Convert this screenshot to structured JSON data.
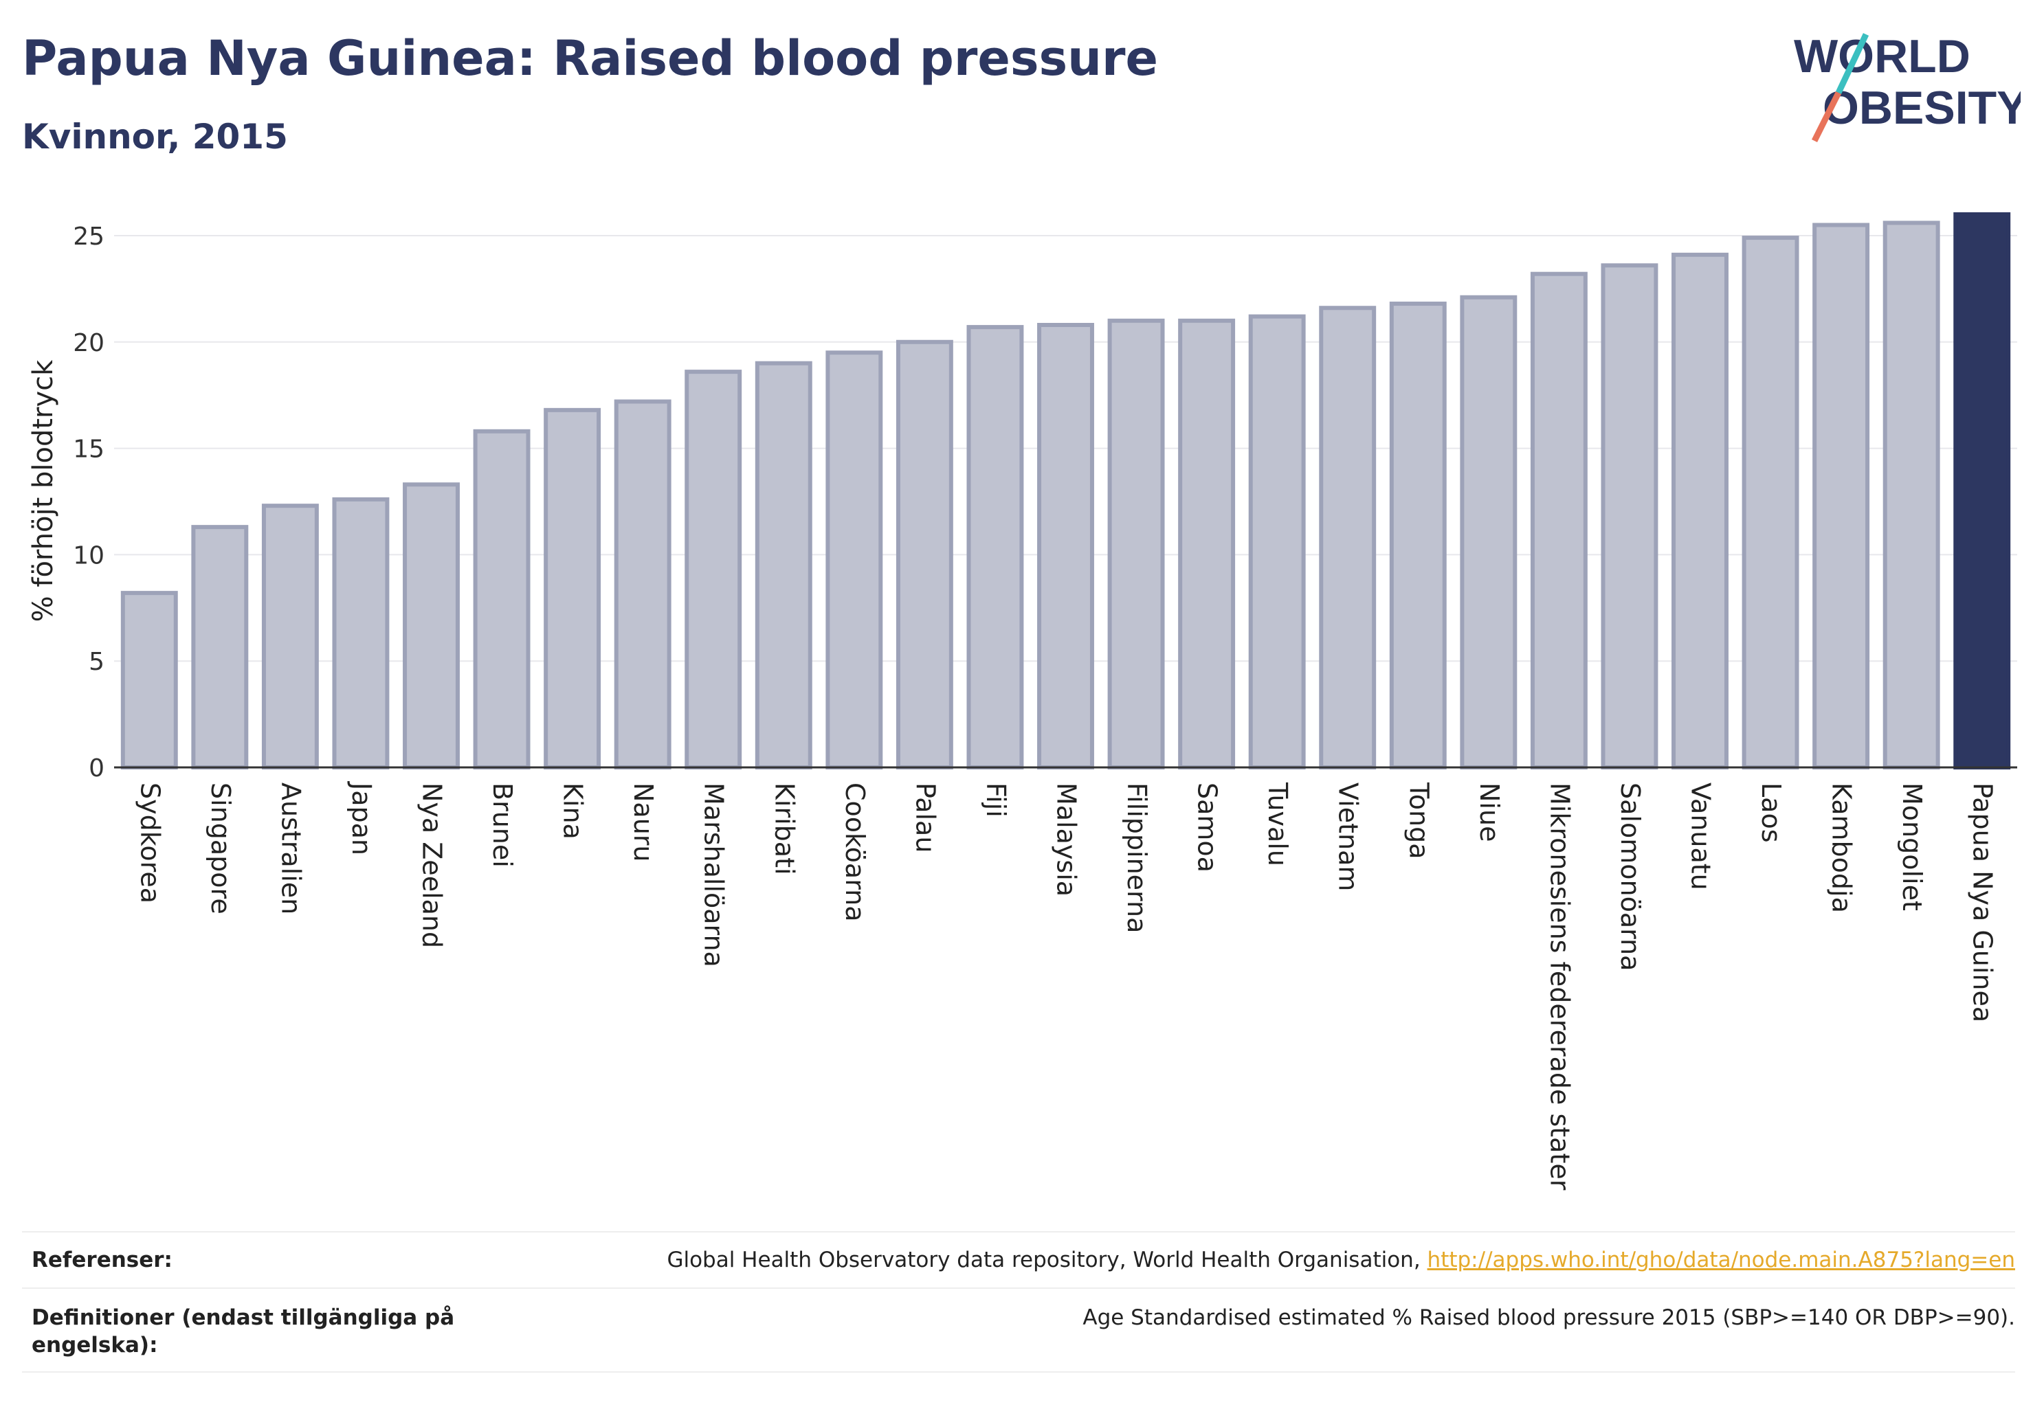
{
  "header": {
    "title": "Papua Nya Guinea: Raised blood pressure",
    "subtitle": "Kvinnor, 2015"
  },
  "logo": {
    "line1": "WORLD",
    "line2": "OBESITY"
  },
  "chart_data": {
    "type": "bar",
    "ylabel": "% förhöjt blodtryck",
    "ylim": [
      0,
      26
    ],
    "yticks": [
      0,
      5,
      10,
      15,
      20,
      25
    ],
    "grid": true,
    "categories": [
      "Sydkorea",
      "Singapore",
      "Australien",
      "Japan",
      "Nya Zeeland",
      "Brunei",
      "Kina",
      "Nauru",
      "Marshallöarna",
      "Kiribati",
      "Cooköarna",
      "Palau",
      "Fiji",
      "Malaysia",
      "Filippinerna",
      "Samoa",
      "Tuvalu",
      "Vietnam",
      "Tonga",
      "Niue",
      "Mikronesiens federerade stater",
      "Salomonöarna",
      "Vanuatu",
      "Laos",
      "Kambodja",
      "Mongoliet",
      "Papua Nya Guinea"
    ],
    "values": [
      8.2,
      11.3,
      12.3,
      12.6,
      13.3,
      15.8,
      16.8,
      17.2,
      18.6,
      19.0,
      19.5,
      20.0,
      20.7,
      20.8,
      21.0,
      21.0,
      21.2,
      21.6,
      21.8,
      22.1,
      23.2,
      23.6,
      24.1,
      24.9,
      25.5,
      25.6,
      26.0
    ],
    "highlight": "Papua Nya Guinea",
    "colors": {
      "bar": "#bfc2d0",
      "bar_border": "#9da2b8",
      "highlight": "#2d3761"
    }
  },
  "references": {
    "ref_label": "Referenser:",
    "ref_text": "Global Health Observatory data repository, World Health Organisation, ",
    "ref_link": "http://apps.who.int/gho/data/node.main.A875?lang=en",
    "def_label": "Definitioner (endast tillgängliga på engelska):",
    "def_text": "Age Standardised estimated % Raised blood pressure 2015 (SBP>=140 OR DBP>=90)."
  }
}
